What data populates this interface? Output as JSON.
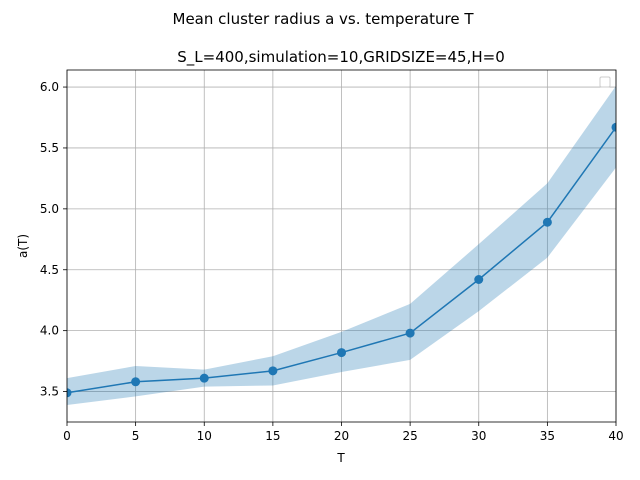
{
  "figure": {
    "suptitle": "Mean cluster radius a vs. temperature T"
  },
  "chart_data": {
    "type": "line",
    "title": "S_L=400,simulation=10,GRIDSIZE=45,H=0",
    "xlabel": "T",
    "ylabel": "a(T)",
    "xlim": [
      0,
      40
    ],
    "ylim": [
      3.25,
      6.14
    ],
    "grid": true,
    "legend": "top-right (empty)",
    "x_ticks": [
      0,
      5,
      10,
      15,
      20,
      25,
      30,
      35,
      40
    ],
    "x_tick_labels": [
      "0",
      "5",
      "10",
      "15",
      "20",
      "25",
      "30",
      "35",
      "40"
    ],
    "y_ticks": [
      3.5,
      4.0,
      4.5,
      5.0,
      5.5,
      6.0
    ],
    "y_tick_labels": [
      "3.5",
      "4.0",
      "4.5",
      "5.0",
      "5.5",
      "6.0"
    ],
    "colors": {
      "line": "#1f77b4",
      "band": "#1f77b4",
      "grid": "#b0b0b0"
    },
    "series": [
      {
        "x": [
          0,
          5,
          10,
          15,
          20,
          25,
          30,
          35,
          40
        ],
        "values": [
          3.49,
          3.58,
          3.61,
          3.67,
          3.82,
          3.98,
          4.42,
          4.89,
          5.67
        ],
        "band_upper": [
          3.61,
          3.71,
          3.68,
          3.79,
          3.99,
          4.22,
          4.71,
          5.21,
          6.01
        ],
        "band_lower": [
          3.39,
          3.46,
          3.54,
          3.55,
          3.66,
          3.76,
          4.16,
          4.6,
          5.34
        ]
      }
    ]
  }
}
